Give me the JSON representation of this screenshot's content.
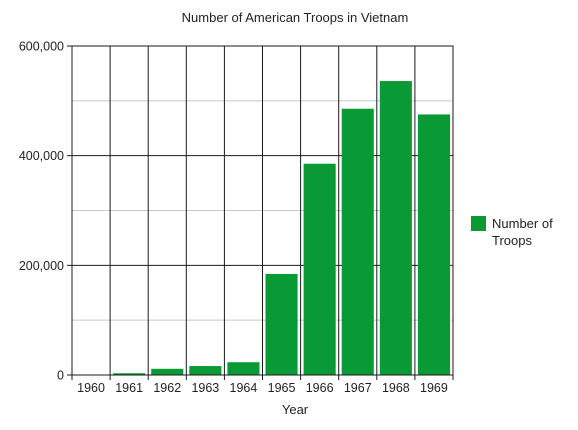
{
  "chart_data": {
    "type": "bar",
    "title": "Number of American Troops in Vietnam",
    "xlabel": "Year",
    "ylabel": "",
    "categories": [
      "1960",
      "1961",
      "1962",
      "1963",
      "1964",
      "1965",
      "1966",
      "1967",
      "1968",
      "1969"
    ],
    "series": [
      {
        "name": "Number of Troops",
        "legend_lines": [
          "Number of",
          "Troops"
        ],
        "values": [
          900,
          3200,
          11300,
          16300,
          23300,
          184300,
          385300,
          485600,
          536100,
          475200
        ],
        "color": "#0a9a35"
      }
    ],
    "ylim": [
      0,
      600000
    ],
    "y_ticks": [
      0,
      200000,
      400000,
      600000
    ],
    "y_tick_labels": [
      "0",
      "200,000",
      "400,000",
      "600,000"
    ],
    "minor_gridlines": [
      100000,
      300000,
      500000
    ],
    "grid": true,
    "legend_position": "right"
  }
}
